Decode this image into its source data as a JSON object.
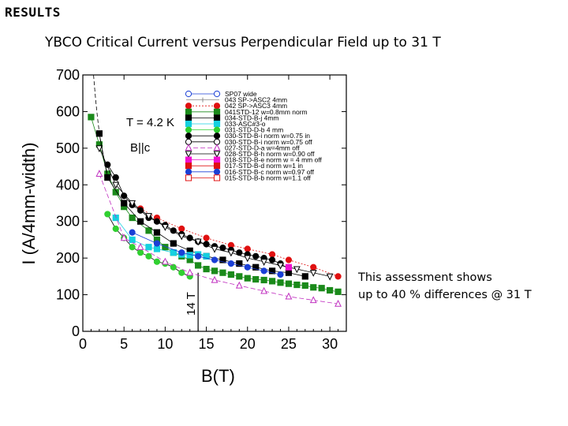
{
  "heading": "RESULTS",
  "note": {
    "line1": "This assessment shows",
    "line2": "up to 40 % differences @ 31 T"
  },
  "chart_data": {
    "type": "scatter",
    "title": "YBCO Critical Current versus Perpendicular Field up to 31 T",
    "xlabel": "B(T)",
    "ylabel": "I (A/4mm-width)",
    "xlim": [
      0,
      32
    ],
    "ylim": [
      0,
      700
    ],
    "xticks": [
      0,
      5,
      10,
      15,
      20,
      25,
      30
    ],
    "yticks": [
      0,
      100,
      200,
      300,
      400,
      500,
      600,
      700
    ],
    "annotations": {
      "temperature": "T = 4.2 K",
      "orientation": "B||c",
      "vline_label": "14 T",
      "vline_x": 14
    },
    "legend_position": "top-right",
    "series": [
      {
        "name": "SP07 wide",
        "color": "#1a3fd6",
        "marker": "circle-open",
        "line": "solid",
        "x": [],
        "y": []
      },
      {
        "name": "043 SP->ASC2  4mm",
        "color": "#888888",
        "marker": "none",
        "line": "solid",
        "x": [],
        "y": []
      },
      {
        "name": "042 SP->ASC3  4mm",
        "color": "#e01010",
        "marker": "circle",
        "line": "dotted",
        "x": [
          7,
          9,
          12,
          15,
          18,
          20,
          23,
          25,
          28,
          31
        ],
        "y": [
          335,
          310,
          280,
          255,
          235,
          225,
          210,
          195,
          175,
          150
        ]
      },
      {
        "name": "041STD-12 w=0.8mm norm",
        "color": "#1a8a1a",
        "marker": "square",
        "line": "solid",
        "x": [
          1,
          2,
          3,
          4,
          5,
          6,
          8,
          9,
          10,
          11,
          12,
          13,
          14,
          15,
          16,
          17,
          18,
          19,
          20,
          21,
          22,
          23,
          24,
          25,
          26,
          27,
          28,
          29,
          30,
          31
        ],
        "y": [
          585,
          510,
          430,
          380,
          340,
          310,
          275,
          250,
          230,
          215,
          205,
          195,
          180,
          170,
          165,
          160,
          155,
          150,
          145,
          142,
          140,
          137,
          133,
          130,
          127,
          125,
          120,
          118,
          112,
          108
        ]
      },
      {
        "name": "034-STD-B-j  4mm",
        "color": "#000000",
        "marker": "square",
        "line": "solid",
        "x": [
          2,
          3,
          5,
          7,
          9,
          11,
          13,
          15,
          17,
          19,
          21,
          23,
          25,
          27
        ],
        "y": [
          540,
          420,
          350,
          300,
          270,
          240,
          220,
          205,
          195,
          185,
          175,
          165,
          160,
          150
        ]
      },
      {
        "name": "033-ASC#3-o",
        "color": "#15d0e0",
        "marker": "square",
        "line": "solid",
        "x": [
          4,
          6,
          8,
          9,
          11,
          12,
          13,
          14,
          15
        ],
        "y": [
          310,
          250,
          230,
          225,
          215,
          210,
          208,
          210,
          205
        ]
      },
      {
        "name": "031-STD-D-b 4 mm",
        "color": "#30d030",
        "marker": "circle",
        "line": "solid",
        "x": [
          3,
          4,
          5,
          6,
          7,
          8,
          9,
          10,
          11,
          12,
          13
        ],
        "y": [
          320,
          280,
          255,
          230,
          215,
          205,
          190,
          185,
          175,
          160,
          150
        ]
      },
      {
        "name": "030-STD-B-i  norm w=0.75  in",
        "color": "#000000",
        "marker": "circle",
        "line": "solid",
        "x": [
          3,
          4,
          5,
          6,
          7,
          8,
          9,
          10,
          11,
          12,
          13,
          14,
          15,
          16,
          17,
          18,
          19,
          20,
          21,
          22,
          23,
          24,
          25
        ],
        "y": [
          455,
          420,
          370,
          345,
          330,
          310,
          300,
          290,
          275,
          265,
          255,
          245,
          238,
          232,
          228,
          222,
          215,
          210,
          205,
          200,
          195,
          185,
          170
        ]
      },
      {
        "name": "030-STD-B-i  norm w=0.75  off",
        "color": "#000000",
        "marker": "circle-open",
        "line": "solid",
        "x": [],
        "y": []
      },
      {
        "name": "027-STD-D-a  w=4mm   off",
        "color": "#c030c0",
        "marker": "triangle-up-open",
        "line": "dashed",
        "x": [
          2,
          5,
          7,
          10,
          13,
          16,
          19,
          22,
          25,
          28,
          31
        ],
        "y": [
          430,
          255,
          230,
          190,
          160,
          140,
          125,
          110,
          95,
          85,
          75
        ]
      },
      {
        "name": "028-STD-B-h  norm w=0.90  off",
        "color": "#000000",
        "marker": "triangle-down-open",
        "line": "solid",
        "x": [
          2,
          4,
          6,
          8,
          10,
          12,
          14,
          16,
          18,
          20,
          22,
          24,
          26,
          28,
          30
        ],
        "y": [
          500,
          400,
          350,
          315,
          285,
          260,
          245,
          225,
          215,
          200,
          190,
          180,
          170,
          160,
          150
        ]
      },
      {
        "name": "018-STD-B-e  norm w = 4 mm  off",
        "color": "#f010d0",
        "marker": "square",
        "line": "solid",
        "x": [
          25
        ],
        "y": [
          175
        ]
      },
      {
        "name": "017-STD-B-d  norm  w=1  in",
        "color": "#e01010",
        "marker": "square",
        "line": "solid",
        "x": [],
        "y": []
      },
      {
        "name": "016-STD-B-c  norm w=0.97 off",
        "color": "#1a3fd6",
        "marker": "circle",
        "line": "solid",
        "x": [
          6,
          9,
          12,
          14,
          16,
          18,
          20,
          22,
          24
        ],
        "y": [
          270,
          240,
          215,
          205,
          195,
          185,
          175,
          165,
          155
        ]
      },
      {
        "name": "015-STD-B-b  norm w=1.1 off",
        "color": "#e01010",
        "marker": "square-open",
        "line": "solid",
        "x": [],
        "y": []
      }
    ]
  }
}
